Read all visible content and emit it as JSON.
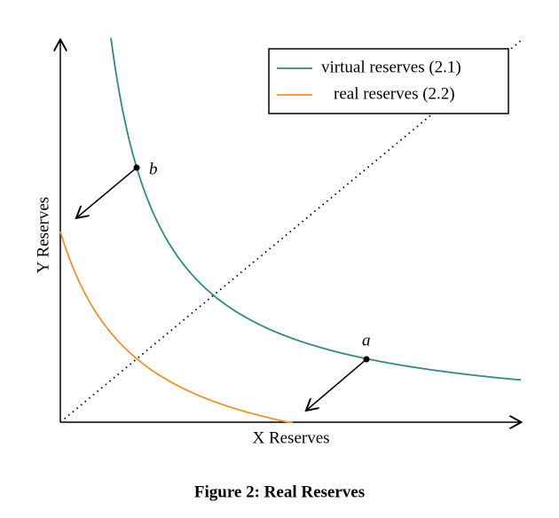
{
  "figure": {
    "legend": [
      "virtual reserves (2.1)",
      "real reserves (2.2)"
    ],
    "points": [
      "b",
      "a"
    ],
    "x_label": "X Reserves",
    "y_label": "Y Reserves",
    "caption": "Figure 2: Real Reserves"
  }
}
